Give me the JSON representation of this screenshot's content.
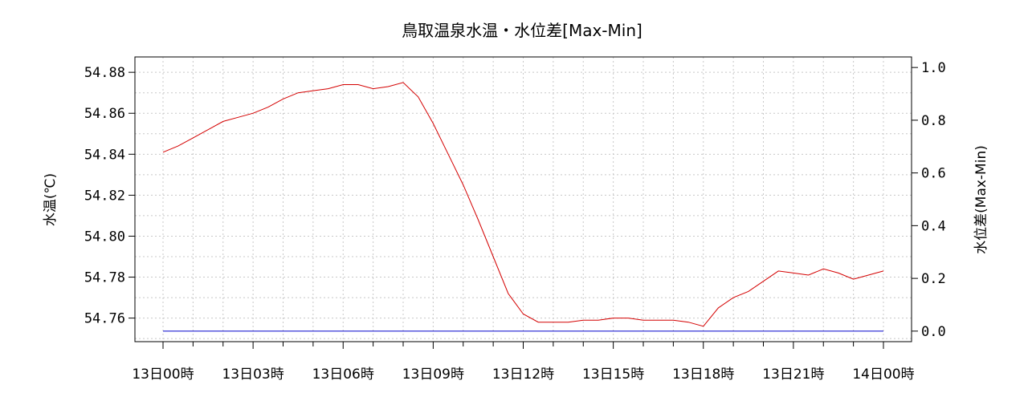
{
  "chart_data": {
    "type": "line",
    "title": "鳥取温泉水温・水位差[Max-Min]",
    "ylabel_left": "水温(℃)",
    "ylabel_right": "水位差(Max-Min)",
    "x_range_hours": [
      0,
      24
    ],
    "x_ticks": [
      {
        "hour": 0,
        "label": "13日00時"
      },
      {
        "hour": 3,
        "label": "13日03時"
      },
      {
        "hour": 6,
        "label": "13日06時"
      },
      {
        "hour": 9,
        "label": "13日09時"
      },
      {
        "hour": 12,
        "label": "13日12時"
      },
      {
        "hour": 15,
        "label": "13日15時"
      },
      {
        "hour": 18,
        "label": "13日18時"
      },
      {
        "hour": 21,
        "label": "13日21時"
      },
      {
        "hour": 24,
        "label": "14日00時"
      }
    ],
    "y_left": {
      "range": [
        54.7485,
        54.8875
      ],
      "ticks": [
        "54.76",
        "54.78",
        "54.80",
        "54.82",
        "54.84",
        "54.86",
        "54.88"
      ]
    },
    "y_right": {
      "range": [
        -0.04,
        1.04
      ],
      "ticks": [
        "0.0",
        "0.2",
        "0.4",
        "0.6",
        "0.8",
        "1.0"
      ]
    },
    "grid": true,
    "series": [
      {
        "axis": "left",
        "color": "#d40000",
        "x": [
          0,
          0.5,
          1,
          1.5,
          2,
          2.5,
          3,
          3.5,
          4,
          4.5,
          5,
          5.5,
          6,
          6.5,
          7,
          7.5,
          8,
          8.5,
          9,
          9.5,
          10,
          10.5,
          11,
          11.5,
          12,
          12.5,
          13,
          13.5,
          14,
          14.5,
          15,
          15.5,
          16,
          16.5,
          17,
          17.5,
          18,
          18.5,
          19,
          19.5,
          20,
          20.5,
          21,
          21.5,
          22,
          22.5,
          23,
          23.5,
          24
        ],
        "values": [
          54.841,
          54.844,
          54.848,
          54.852,
          54.856,
          54.858,
          54.86,
          54.863,
          54.867,
          54.87,
          54.871,
          54.872,
          54.874,
          54.874,
          54.872,
          54.873,
          54.875,
          54.868,
          54.855,
          54.84,
          54.825,
          54.808,
          54.79,
          54.772,
          54.762,
          54.758,
          54.758,
          54.758,
          54.759,
          54.759,
          54.76,
          54.76,
          54.759,
          54.759,
          54.759,
          54.758,
          54.756,
          54.765,
          54.77,
          54.773,
          54.778,
          54.783,
          54.782,
          54.781,
          54.784,
          54.782,
          54.779,
          54.781,
          54.783
        ]
      },
      {
        "axis": "right",
        "color": "#0000cc",
        "x": [
          0,
          24
        ],
        "values": [
          0.0,
          0.0
        ]
      }
    ]
  }
}
